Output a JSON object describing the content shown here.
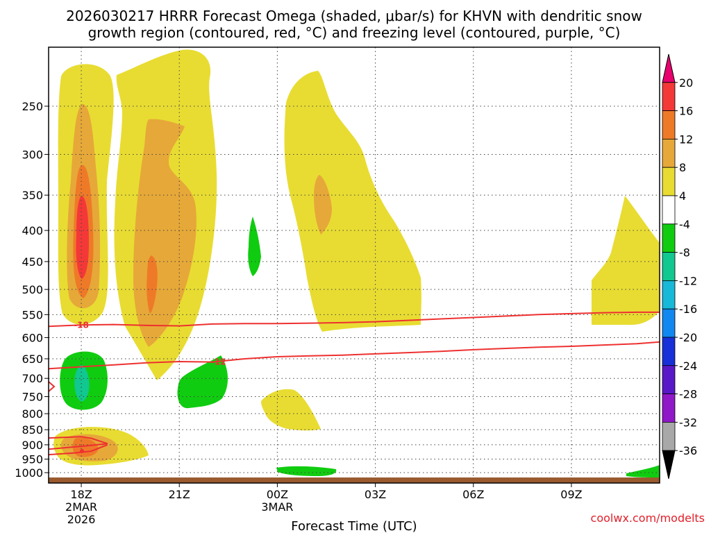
{
  "chart_data": {
    "type": "contour",
    "title_line1": "2026030217 HRRR Forecast Omega (shaded, μbar/s) for KHVN with dendritic snow",
    "title_line2": "growth region (contoured, red, °C) and freezing level (contoured, purple, °C)",
    "xlabel": "Forecast Time (UTC)",
    "credit": "coolwx.com/modelts",
    "y_ticks": [
      250,
      300,
      350,
      400,
      450,
      500,
      550,
      600,
      650,
      700,
      750,
      800,
      850,
      900,
      950,
      1000
    ],
    "y_range_hPa": [
      200,
      1040
    ],
    "x_ticks": [
      {
        "hour": 18,
        "lines": [
          "18Z",
          "2MAR",
          "2026"
        ]
      },
      {
        "hour": 21,
        "lines": [
          "21Z"
        ]
      },
      {
        "hour": 24,
        "lines": [
          "00Z",
          "3MAR"
        ]
      },
      {
        "hour": 27,
        "lines": [
          "03Z"
        ]
      },
      {
        "hour": 30,
        "lines": [
          "06Z"
        ]
      },
      {
        "hour": 33,
        "lines": [
          "09Z"
        ]
      }
    ],
    "x_range_hours": [
      17,
      35.7
    ],
    "colorbar": {
      "labels": [
        "20",
        "16",
        "12",
        "8",
        "4",
        "-4",
        "-8",
        "-12",
        "-16",
        "-20",
        "-24",
        "-28",
        "-32",
        "-36"
      ],
      "colors": [
        "#e8006e",
        "#f43838",
        "#ee7a28",
        "#e6a838",
        "#e8dc32",
        "#ffffff",
        "#10cc10",
        "#10c890",
        "#18b8d8",
        "#1088f0",
        "#1830d8",
        "#5818c8",
        "#9018c8",
        "#a8a8a8",
        "#000000"
      ]
    },
    "omega_colors": {
      "4": "#e8dc32",
      "8": "#e6a838",
      "12": "#ee7a28",
      "16": "#f43838",
      "-8": "#10cc10",
      "-12": "#10c890"
    },
    "contours": [
      {
        "label": "-18",
        "label_hour": 18.0,
        "label_p": 572,
        "points": [
          [
            17,
            575
          ],
          [
            18,
            572
          ],
          [
            19,
            571
          ],
          [
            20,
            573
          ],
          [
            21,
            574
          ],
          [
            22,
            570
          ],
          [
            23,
            569
          ],
          [
            24,
            569
          ],
          [
            25,
            568
          ],
          [
            26,
            567
          ],
          [
            27,
            565
          ],
          [
            28,
            562
          ],
          [
            29,
            559
          ],
          [
            30,
            556
          ],
          [
            31,
            553
          ],
          [
            32,
            550
          ],
          [
            33,
            548
          ],
          [
            34,
            546
          ],
          [
            35,
            545
          ],
          [
            35.7,
            545
          ]
        ]
      },
      {
        "label": "-12",
        "label_hour": 22.2,
        "label_p": 658,
        "points": [
          [
            17,
            675
          ],
          [
            18,
            670
          ],
          [
            19,
            665
          ],
          [
            20,
            660
          ],
          [
            21,
            657
          ],
          [
            22,
            658
          ],
          [
            23,
            650
          ],
          [
            24,
            645
          ],
          [
            25,
            643
          ],
          [
            26,
            641
          ],
          [
            27,
            638
          ],
          [
            28,
            635
          ],
          [
            29,
            632
          ],
          [
            30,
            628
          ],
          [
            31,
            625
          ],
          [
            32,
            622
          ],
          [
            33,
            620
          ],
          [
            34,
            617
          ],
          [
            35,
            614
          ],
          [
            35.7,
            610
          ]
        ]
      },
      {
        "label": "",
        "label_hour": null,
        "label_p": null,
        "points": [
          [
            17,
            877
          ],
          [
            18,
            873
          ],
          [
            18.3,
            878
          ],
          [
            18.8,
            896
          ],
          [
            18.3,
            902
          ],
          [
            17.8,
            907
          ],
          [
            17,
            915
          ]
        ]
      },
      {
        "label": "",
        "label_hour": null,
        "label_p": null,
        "points": [
          [
            17,
            934
          ],
          [
            17.8,
            928
          ],
          [
            18.3,
            922
          ],
          [
            18.8,
            900
          ]
        ]
      }
    ],
    "ground_p": 1040
  }
}
